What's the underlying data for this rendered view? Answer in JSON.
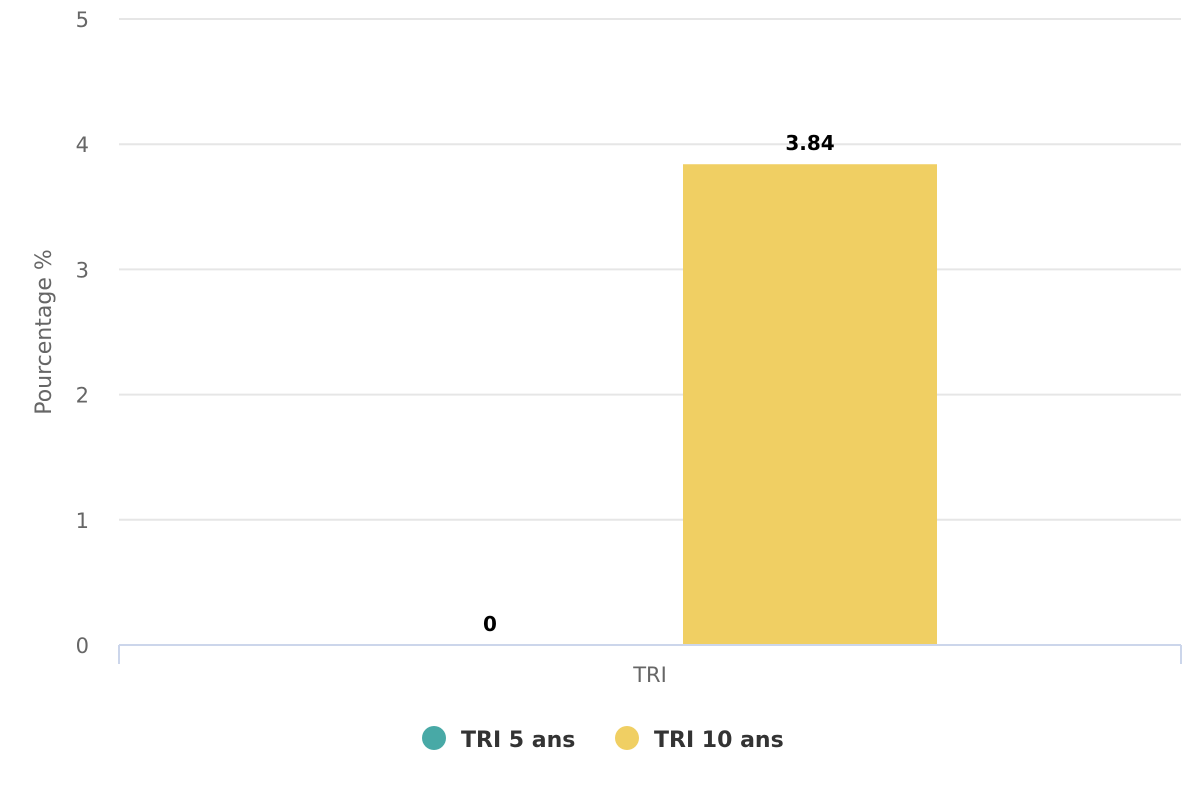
{
  "chart_data": {
    "type": "bar",
    "categories": [
      "TRI"
    ],
    "series": [
      {
        "name": "TRI 5 ans",
        "values": [
          0
        ],
        "color": "#48a9a6"
      },
      {
        "name": "TRI 10 ans",
        "values": [
          3.84
        ],
        "color": "#f0cf63"
      }
    ],
    "data_labels": [
      "0",
      "3.84"
    ],
    "ylabel": "Pourcentage %",
    "xlabel": "",
    "ylim": [
      0,
      5
    ],
    "yticks": [
      "0",
      "1",
      "2",
      "3",
      "4",
      "5"
    ],
    "grid": true,
    "legend_position": "bottom-center"
  }
}
